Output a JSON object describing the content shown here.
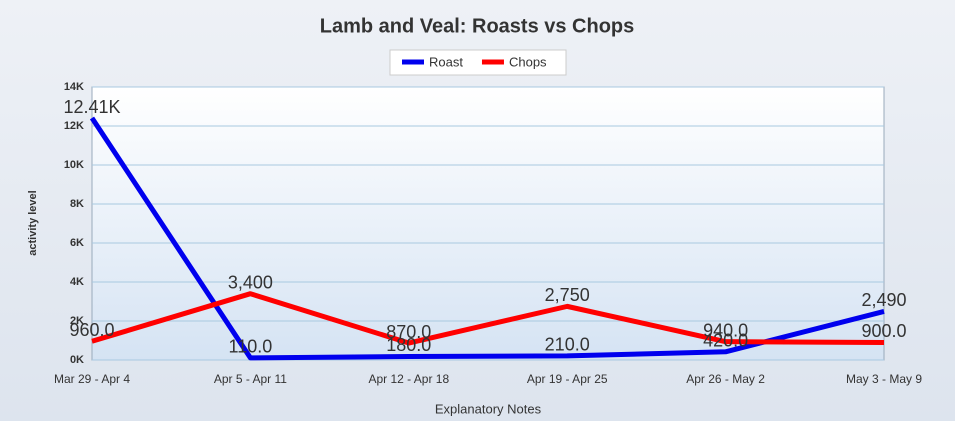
{
  "chart_data": {
    "type": "line",
    "title": "Lamb and Veal: Roasts vs Chops",
    "x_label": "Explanatory Notes",
    "y_label": "activity level",
    "categories": [
      "Mar 29 - Apr 4",
      "Apr 5 - Apr 11",
      "Apr 12 - Apr 18",
      "Apr 19 - Apr 25",
      "Apr 26 - May 2",
      "May 3 - May 9"
    ],
    "series": [
      {
        "name": "Roast",
        "color": "#0000ee",
        "values": [
          12410,
          110,
          180,
          210,
          420,
          2490
        ],
        "value_labels": [
          "12.41K",
          "110.0",
          "180.0",
          "210.0",
          "420.0",
          "2,490"
        ]
      },
      {
        "name": "Chops",
        "color": "#ff0000",
        "values": [
          960,
          3400,
          870,
          2750,
          940,
          900
        ],
        "value_labels": [
          "960.0",
          "3,400",
          "870.0",
          "2,750",
          "940.0",
          "900.0"
        ]
      }
    ],
    "ylim": [
      0,
      14000
    ],
    "yticks": [
      {
        "value": 0,
        "label": "0K"
      },
      {
        "value": 2000,
        "label": "2K"
      },
      {
        "value": 4000,
        "label": "4K"
      },
      {
        "value": 6000,
        "label": "6K"
      },
      {
        "value": 8000,
        "label": "8K"
      },
      {
        "value": 10000,
        "label": "10K"
      },
      {
        "value": 12000,
        "label": "12K"
      },
      {
        "value": 14000,
        "label": "14K"
      }
    ],
    "grid": true,
    "legend": "top"
  }
}
